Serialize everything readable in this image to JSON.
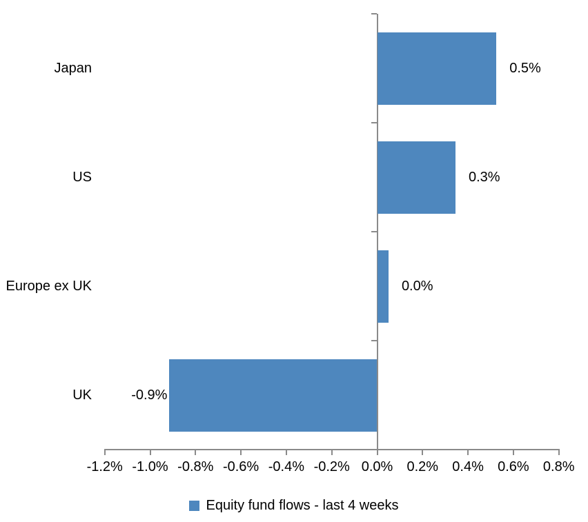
{
  "chart_data": {
    "type": "bar",
    "orientation": "horizontal",
    "title": "",
    "categories": [
      "Japan",
      "US",
      "Europe ex UK",
      "UK"
    ],
    "values": [
      0.5,
      0.3,
      0.0,
      -0.9
    ],
    "data_labels": [
      "0.5%",
      "0.3%",
      "0.0%",
      "-0.9%"
    ],
    "bar_extents_pct": [
      0.525,
      0.345,
      0.05,
      -0.915
    ],
    "series": [
      {
        "name": "Equity fund flows - last 4 weeks",
        "values": [
          0.5,
          0.3,
          0.0,
          -0.9
        ]
      }
    ],
    "legend": {
      "label": "Equity fund flows - last 4 weeks",
      "position": "bottom",
      "marker": "square"
    },
    "x_axis": {
      "unit": "%",
      "min": -1.2,
      "max": 0.8,
      "tick_step": 0.2,
      "tick_values": [
        -1.2,
        -1.0,
        -0.8,
        -0.6,
        -0.4,
        -0.2,
        0.0,
        0.2,
        0.4,
        0.6,
        0.8
      ],
      "tick_labels": [
        "-1.2%",
        "-1.0%",
        "-0.8%",
        "-0.6%",
        "-0.4%",
        "-0.2%",
        "0.0%",
        "0.2%",
        "0.4%",
        "0.6%",
        "0.8%"
      ]
    },
    "y_axis": {
      "label": ""
    },
    "grid": false,
    "colors": {
      "bar": "#4E87BE",
      "axis": "#8A8A8A",
      "text": "#000000",
      "background": "#FFFFFF"
    }
  }
}
